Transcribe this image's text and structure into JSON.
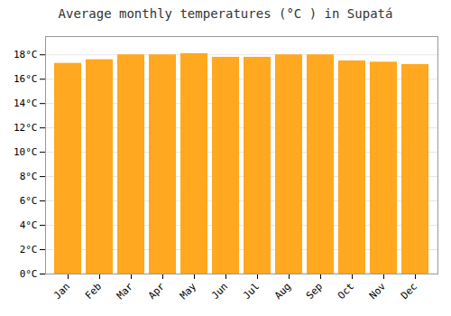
{
  "chart_data": {
    "type": "bar",
    "title": "Average monthly temperatures (°C ) in Supatá",
    "categories": [
      "Jan",
      "Feb",
      "Mar",
      "Apr",
      "May",
      "Jun",
      "Jul",
      "Aug",
      "Sep",
      "Oct",
      "Nov",
      "Dec"
    ],
    "values": [
      17.3,
      17.6,
      18.0,
      18.0,
      18.1,
      17.8,
      17.8,
      18.0,
      18.0,
      17.5,
      17.4,
      17.2
    ],
    "color": "#FFA820",
    "ylim": [
      0,
      19.5
    ],
    "yticks": [
      {
        "value": 0,
        "label": "0°C"
      },
      {
        "value": 2,
        "label": "2°C"
      },
      {
        "value": 4,
        "label": "4°C"
      },
      {
        "value": 6,
        "label": "6°C"
      },
      {
        "value": 8,
        "label": "8°C"
      },
      {
        "value": 10,
        "label": "10°C"
      },
      {
        "value": 12,
        "label": "12°C"
      },
      {
        "value": 14,
        "label": "14°C"
      },
      {
        "value": 16,
        "label": "16°C"
      },
      {
        "value": 18,
        "label": "18°C"
      }
    ],
    "grid": true
  }
}
